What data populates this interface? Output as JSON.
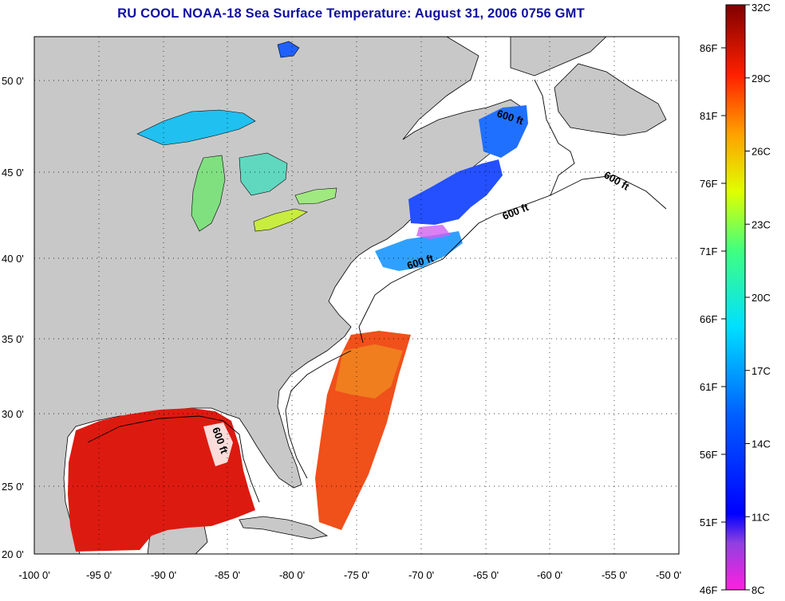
{
  "title": "RU COOL  NOAA-18  Sea Surface Temperature:  August 31, 2006 0756 GMT",
  "map": {
    "lon_ticks": [
      "-100 0'",
      "-95 0'",
      "-90 0'",
      "-85 0'",
      "-80 0'",
      "-75 0'",
      "-70 0'",
      "-65 0'",
      "-60 0'",
      "-55 0'",
      "-50 0'"
    ],
    "lat_ticks": [
      "50 0'",
      "45 0'",
      "40 0'",
      "35 0'",
      "30 0'",
      "25 0'",
      "20 0'"
    ],
    "isobath_labels": [
      "600 ft",
      "600 ft",
      "600 ft",
      "600 ft",
      "600 ft"
    ],
    "colors": {
      "land": "#c8c8c8",
      "ocean_nodata": "#ffffff",
      "coastline": "#000000",
      "gulf_warm": "#dd1a10",
      "stream_warm": "#f0501a"
    }
  },
  "colorbar": {
    "celsius_labels": [
      "32C",
      "29C",
      "26C",
      "23C",
      "20C",
      "17C",
      "14C",
      "11C",
      "8C"
    ],
    "fahrenheit_labels": [
      "86F",
      "81F",
      "76F",
      "71F",
      "66F",
      "61F",
      "56F",
      "51F",
      "46F"
    ]
  }
}
